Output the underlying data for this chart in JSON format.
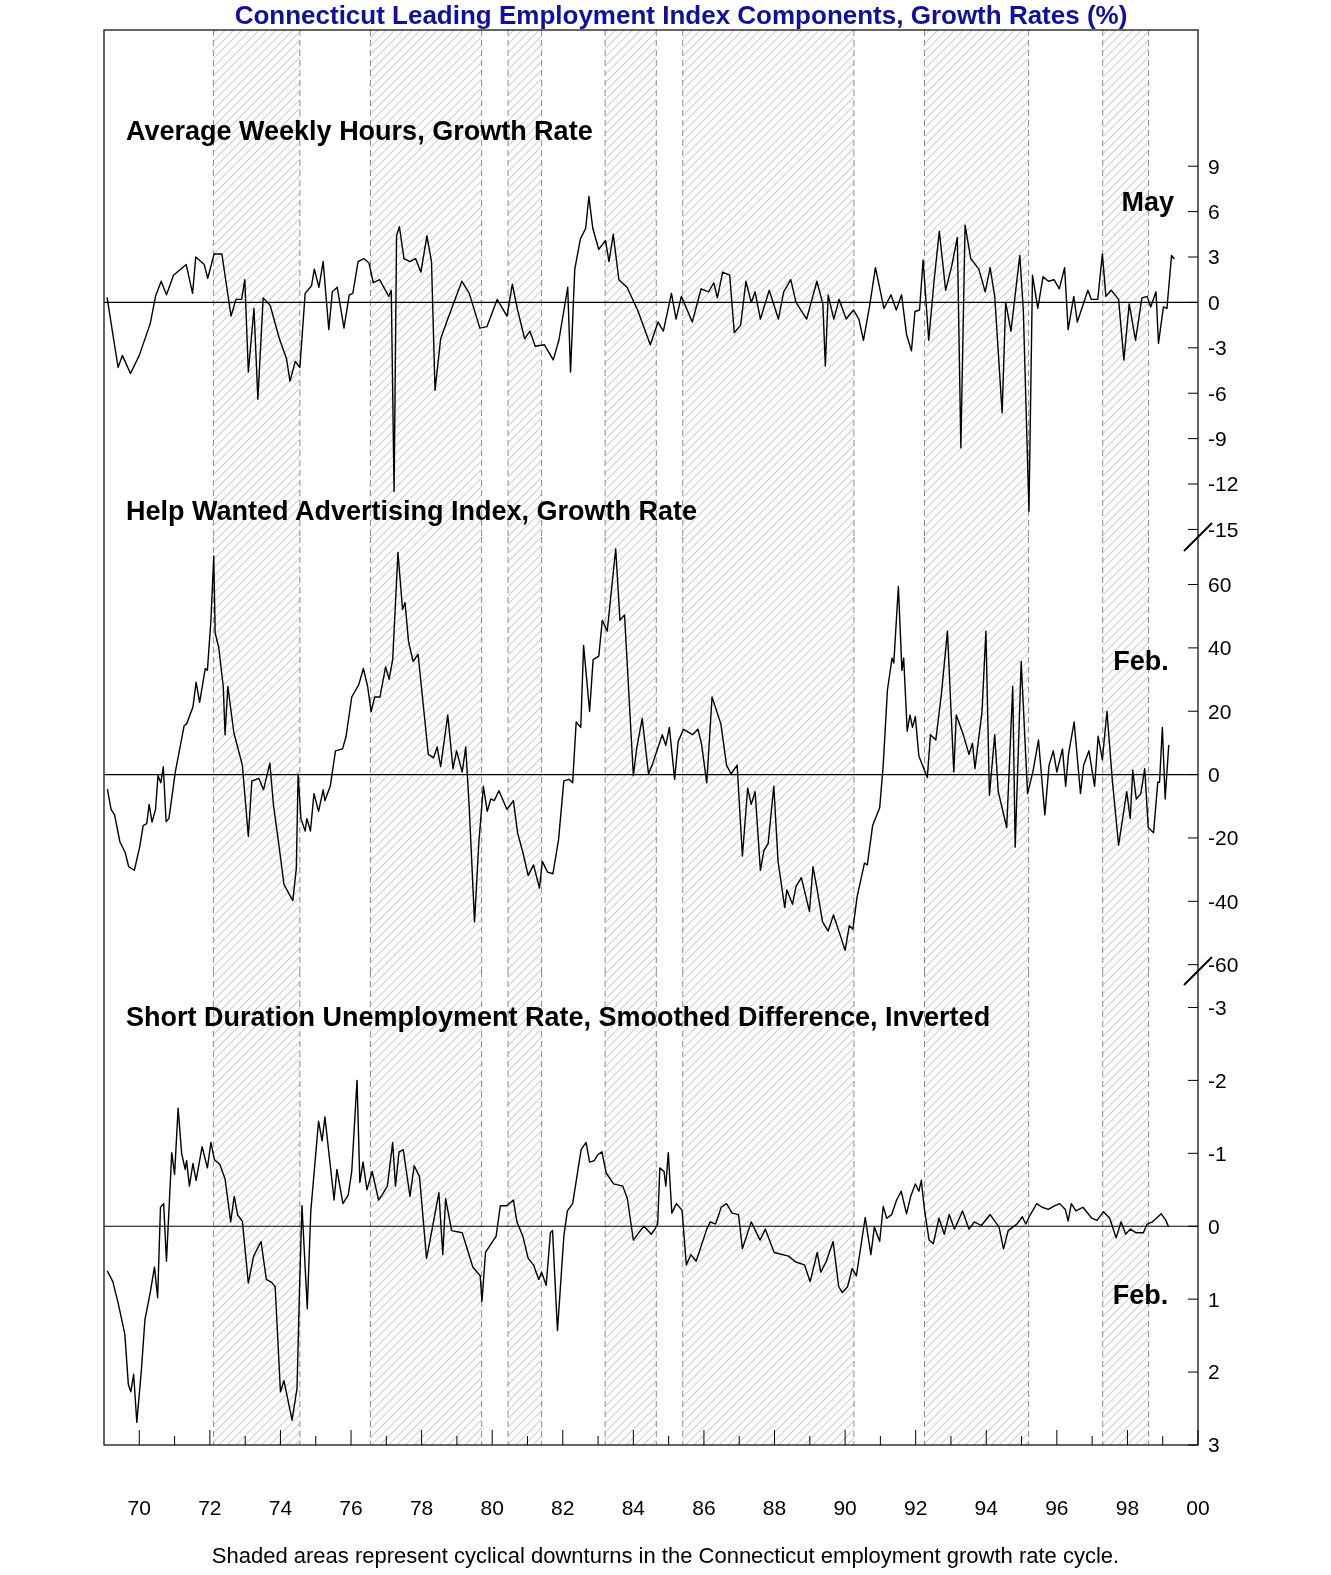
{
  "chart_data": [
    {
      "type": "line",
      "title": "Connecticut Leading Employment Index Components, Growth Rates (%)",
      "subtitle": "Average Weekly Hours, Growth Rate",
      "color": "#000000",
      "x": [
        1969.09,
        1969.25,
        1969.4,
        1969.52,
        1969.75,
        1970.0,
        1970.31,
        1970.46,
        1970.62,
        1970.77,
        1970.97,
        1971.33,
        1971.51,
        1971.6,
        1971.84,
        1971.94,
        1972.12,
        1972.34,
        1972.6,
        1972.74,
        1972.9,
        1972.99,
        1973.09,
        1973.25,
        1973.36,
        1973.51,
        1973.71,
        1973.97,
        1974.17,
        1974.27,
        1974.42,
        1974.55,
        1974.7,
        1974.88,
        1974.96,
        1975.09,
        1975.21,
        1975.37,
        1975.47,
        1975.61,
        1975.8,
        1975.95,
        1976.05,
        1976.2,
        1976.36,
        1976.51,
        1976.63,
        1976.81,
        1977.07,
        1977.14,
        1977.22,
        1977.29,
        1977.37,
        1977.5,
        1977.67,
        1977.83,
        1977.98,
        1978.15,
        1978.28,
        1978.38,
        1978.54,
        1978.74,
        1979.14,
        1979.35,
        1979.65,
        1979.85,
        1980.14,
        1980.42,
        1980.57,
        1980.72,
        1980.92,
        1981.07,
        1981.22,
        1981.48,
        1981.73,
        1981.89,
        1982.14,
        1982.22,
        1982.34,
        1982.5,
        1982.65,
        1982.74,
        1982.85,
        1983.02,
        1983.21,
        1983.31,
        1983.43,
        1983.59,
        1983.82,
        1984.12,
        1984.48,
        1984.7,
        1984.85,
        1985.08,
        1985.21,
        1985.36,
        1985.67,
        1985.92,
        1986.13,
        1986.28,
        1986.38,
        1986.53,
        1986.73,
        1986.86,
        1987.04,
        1987.19,
        1987.34,
        1987.45,
        1987.6,
        1987.85,
        1988.11,
        1988.26,
        1988.46,
        1988.61,
        1988.91,
        1989.2,
        1989.37,
        1989.44,
        1989.52,
        1989.68,
        1989.83,
        1990.03,
        1990.24,
        1990.39,
        1990.52,
        1990.69,
        1990.86,
        1991.1,
        1991.3,
        1991.45,
        1991.6,
        1991.74,
        1991.88,
        1991.98,
        1992.11,
        1992.21,
        1992.37,
        1992.52,
        1992.67,
        1992.85,
        1993.03,
        1993.18,
        1993.28,
        1993.4,
        1993.56,
        1993.79,
        1993.97,
        1994.11,
        1994.24,
        1994.45,
        1994.55,
        1994.7,
        1994.95,
        1995.05,
        1995.21,
        1995.31,
        1995.46,
        1995.61,
        1995.76,
        1995.92,
        1996.07,
        1996.22,
        1996.32,
        1996.48,
        1996.58,
        1996.88,
        1996.98,
        1997.16,
        1997.29,
        1997.39,
        1997.54,
        1997.75,
        1997.9,
        1998.05,
        1998.23,
        1998.41,
        1998.56,
        1998.66,
        1998.81,
        1998.88,
        1999.02,
        1999.12,
        1999.25,
        1999.32
      ],
      "values": [
        0.3,
        -2.1,
        -4.3,
        -3.5,
        -4.7,
        -3.5,
        -1.4,
        0.4,
        1.4,
        0.5,
        1.8,
        2.5,
        0.6,
        3.0,
        2.5,
        1.6,
        3.2,
        3.2,
        -0.9,
        0.2,
        0.2,
        1.5,
        -4.6,
        -0.4,
        -6.4,
        0.3,
        -0.2,
        -2.4,
        -3.7,
        -5.2,
        -3.9,
        -4.3,
        0.6,
        1.1,
        2.2,
        1.0,
        2.7,
        -1.8,
        0.7,
        1.0,
        -1.7,
        0.5,
        0.6,
        2.7,
        2.9,
        2.6,
        1.3,
        1.5,
        0.4,
        0.8,
        -12.5,
        4.4,
        5.0,
        2.9,
        2.7,
        2.9,
        2.0,
        4.4,
        2.7,
        -5.8,
        -2.4,
        -1.1,
        1.4,
        0.6,
        -1.7,
        -1.6,
        0.2,
        -0.9,
        1.2,
        -0.5,
        -2.4,
        -1.9,
        -2.9,
        -2.8,
        -3.8,
        -2.5,
        1.0,
        -4.6,
        2.2,
        4.2,
        4.9,
        7.0,
        4.9,
        3.5,
        4.1,
        2.7,
        4.5,
        1.5,
        1.0,
        -0.5,
        -2.8,
        -1.3,
        -1.9,
        0.6,
        -1.1,
        0.4,
        -1.3,
        0.9,
        0.7,
        1.3,
        0.3,
        2.0,
        1.8,
        -2.0,
        -1.5,
        1.4,
        0.0,
        0.7,
        -1.1,
        0.8,
        -1.1,
        0.7,
        1.5,
        0.0,
        -1.1,
        1.4,
        -0.1,
        -4.2,
        0.5,
        -1.1,
        0.2,
        -1.1,
        -0.5,
        -1.1,
        -2.5,
        -0.3,
        2.3,
        -0.4,
        0.5,
        -0.5,
        0.5,
        -2.1,
        -3.2,
        -0.6,
        -0.5,
        2.8,
        -2.5,
        1.4,
        4.7,
        0.8,
        2.5,
        4.3,
        -9.6,
        5.1,
        2.9,
        2.2,
        0.7,
        2.3,
        0.4,
        -7.3,
        0.0,
        -1.9,
        3.1,
        -0.5,
        -13.8,
        1.8,
        -0.4,
        1.7,
        1.4,
        1.5,
        0.9,
        2.3,
        -1.8,
        0.4,
        -1.3,
        0.8,
        0.2,
        0.2,
        3.2,
        0.4,
        0.8,
        0.2,
        -3.8,
        -0.1,
        -2.5,
        0.3,
        0.4,
        -0.3,
        0.7,
        -2.7,
        -0.3,
        -0.4,
        3.1,
        2.9
      ],
      "xlim": [
        1969,
        2000
      ],
      "ylim": [
        -15.5,
        18
      ],
      "yticks": [
        9,
        6,
        3,
        0,
        -3,
        -6,
        -9,
        -12,
        -15
      ],
      "tick_labels": "y",
      "ref_lines": [
        {
          "axis": "y",
          "value": 0
        }
      ],
      "bands": [
        {
          "axis": "x",
          "from": 1972.1,
          "to": 1974.55,
          "color": "#8c8c8c"
        },
        {
          "axis": "x",
          "from": 1976.55,
          "to": 1979.7,
          "color": "#8c8c8c"
        },
        {
          "axis": "x",
          "from": 1980.45,
          "to": 1981.4,
          "color": "#8c8c8c"
        },
        {
          "axis": "x",
          "from": 1983.2,
          "to": 1984.65,
          "color": "#8c8c8c"
        },
        {
          "axis": "x",
          "from": 1985.4,
          "to": 1990.25,
          "color": "#8c8c8c"
        },
        {
          "axis": "x",
          "from": 1992.25,
          "to": 1995.2,
          "color": "#8c8c8c"
        },
        {
          "axis": "x",
          "from": 1997.3,
          "to": 1998.6,
          "color": "#8c8c8c"
        }
      ],
      "annotations": [
        {
          "text": "May",
          "x": 1999.32,
          "y": 2.9
        }
      ]
    },
    {
      "type": "line",
      "title": "Help Wanted Advertising Index, Growth Rate",
      "color": "#000000",
      "x": [
        1969.1,
        1969.2,
        1969.3,
        1969.45,
        1969.6,
        1969.7,
        1969.86,
        1970.01,
        1970.11,
        1970.21,
        1970.28,
        1970.36,
        1970.46,
        1970.53,
        1970.61,
        1970.68,
        1970.76,
        1970.84,
        1971.02,
        1971.27,
        1971.34,
        1971.52,
        1971.61,
        1971.71,
        1971.87,
        1971.93,
        1972.03,
        1972.11,
        1972.15,
        1972.25,
        1972.38,
        1972.43,
        1972.51,
        1972.68,
        1972.92,
        1973.09,
        1973.19,
        1973.39,
        1973.52,
        1973.7,
        1973.8,
        1973.95,
        1974.1,
        1974.35,
        1974.45,
        1974.5,
        1974.58,
        1974.7,
        1974.75,
        1974.85,
        1974.95,
        1975.08,
        1975.21,
        1975.26,
        1975.41,
        1975.56,
        1975.76,
        1975.86,
        1976.02,
        1976.22,
        1976.35,
        1976.47,
        1976.57,
        1976.67,
        1976.82,
        1976.98,
        1977.08,
        1977.18,
        1977.33,
        1977.46,
        1977.53,
        1977.63,
        1977.76,
        1977.9,
        1978.19,
        1978.34,
        1978.44,
        1978.54,
        1978.74,
        1978.89,
        1978.99,
        1979.15,
        1979.25,
        1979.35,
        1979.5,
        1979.62,
        1979.75,
        1979.86,
        1979.96,
        1980.06,
        1980.19,
        1980.42,
        1980.6,
        1980.72,
        1980.87,
        1981.02,
        1981.17,
        1981.34,
        1981.42,
        1981.57,
        1981.72,
        1981.88,
        1982.03,
        1982.18,
        1982.28,
        1982.38,
        1982.51,
        1982.59,
        1982.76,
        1982.86,
        1983.02,
        1983.12,
        1983.26,
        1983.5,
        1983.62,
        1983.75,
        1984.0,
        1984.1,
        1984.25,
        1984.43,
        1984.55,
        1984.82,
        1984.92,
        1985.02,
        1985.17,
        1985.27,
        1985.42,
        1985.68,
        1985.83,
        1985.93,
        1986.08,
        1986.23,
        1986.48,
        1986.64,
        1986.77,
        1986.94,
        1987.09,
        1987.24,
        1987.34,
        1987.45,
        1987.6,
        1987.7,
        1987.82,
        1987.98,
        1988.1,
        1988.29,
        1988.35,
        1988.51,
        1988.61,
        1988.76,
        1988.99,
        1989.09,
        1989.21,
        1989.36,
        1989.52,
        1989.67,
        1989.87,
        1990.0,
        1990.12,
        1990.22,
        1990.34,
        1990.55,
        1990.63,
        1990.78,
        1990.98,
        1991.08,
        1991.2,
        1991.33,
        1991.38,
        1991.51,
        1991.61,
        1991.66,
        1991.76,
        1991.84,
        1991.91,
        1991.99,
        1992.09,
        1992.19,
        1992.33,
        1992.42,
        1992.57,
        1992.73,
        1992.9,
        1993.08,
        1993.15,
        1993.35,
        1993.51,
        1993.61,
        1993.68,
        1993.88,
        1993.99,
        1994.09,
        1994.24,
        1994.34,
        1994.58,
        1994.75,
        1994.82,
        1994.99,
        1995.17,
        1995.32,
        1995.48,
        1995.66,
        1995.78,
        1995.9,
        1996.0,
        1996.16,
        1996.25,
        1996.33,
        1996.49,
        1996.67,
        1996.76,
        1996.91,
        1997.07,
        1997.17,
        1997.29,
        1997.42,
        1997.57,
        1997.75,
        1997.98,
        1998.08,
        1998.15,
        1998.25,
        1998.38,
        1998.49,
        1998.59,
        1998.74,
        1998.86,
        1998.91,
        1998.99,
        1999.07,
        1999.17
      ],
      "values": [
        -4.8,
        -11.0,
        -12.7,
        -21.2,
        -24.6,
        -29.1,
        -30.2,
        -22.9,
        -16.1,
        -15.5,
        -9.4,
        -15.0,
        -11.0,
        -0.3,
        -2.6,
        2.5,
        -14.8,
        -13.9,
        0.8,
        15.4,
        16.0,
        21.3,
        29.2,
        22.8,
        33.5,
        32.9,
        48.7,
        69.0,
        44.7,
        40.2,
        27.8,
        12.6,
        27.8,
        13.2,
        3.0,
        -19.5,
        -2.0,
        -1.2,
        -4.8,
        3.6,
        -9.4,
        -21.7,
        -34.7,
        -39.8,
        -29.6,
        0.2,
        -13.9,
        -17.8,
        -13.9,
        -17.8,
        -6.0,
        -11.6,
        -4.8,
        -8.2,
        -3.7,
        7.5,
        8.1,
        12.1,
        24.5,
        28.4,
        33.5,
        27.8,
        19.9,
        24.5,
        24.5,
        34.0,
        30.1,
        36.3,
        70.1,
        52.1,
        54.3,
        41.9,
        35.7,
        38.0,
        6.4,
        5.3,
        8.7,
        2.5,
        18.8,
        1.9,
        7.5,
        0.8,
        8.7,
        -10.5,
        -46.5,
        -21.7,
        -3.7,
        -11.6,
        -7.7,
        -8.2,
        -5.1,
        -11.0,
        -8.2,
        -18.4,
        -24.6,
        -31.9,
        -28.5,
        -35.8,
        -27.4,
        -30.8,
        -31.3,
        -20.6,
        -2.0,
        -1.5,
        -2.6,
        16.6,
        14.9,
        40.8,
        19.9,
        36.3,
        37.4,
        48.7,
        45.3,
        71.2,
        48.7,
        50.4,
        -0.3,
        8.7,
        17.7,
        0.2,
        3.6,
        12.6,
        9.2,
        14.9,
        -1.5,
        10.4,
        14.3,
        12.6,
        14.3,
        9.8,
        -2.6,
        24.5,
        16.0,
        3.0,
        0.2,
        3.0,
        -25.7,
        -4.3,
        -9.4,
        -5.4,
        -30.2,
        -24.0,
        -21.7,
        -3.7,
        -27.4,
        -42.0,
        -36.4,
        -40.9,
        -35.3,
        -32.5,
        -43.2,
        -29.1,
        -36.4,
        -46.5,
        -49.4,
        -44.3,
        -51.0,
        -55.5,
        -47.7,
        -48.8,
        -38.6,
        -27.9,
        -28.5,
        -16.1,
        -10.5,
        3.0,
        26.7,
        36.8,
        35.2,
        59.4,
        32.9,
        36.8,
        13.7,
        18.8,
        14.9,
        18.3,
        5.9,
        3.0,
        -0.9,
        12.6,
        10.9,
        25.6,
        45.3,
        0.8,
        18.8,
        12.6,
        6.4,
        9.8,
        1.9,
        19.9,
        45.3,
        -6.5,
        12.6,
        -5.4,
        -16.7,
        27.8,
        -22.9,
        35.7,
        -6.0,
        0.8,
        10.9,
        -12.7,
        3.0,
        7.5,
        0.8,
        8.1,
        -3.7,
        6.4,
        16.6,
        -6.0,
        3.0,
        7.5,
        -3.7,
        12.1,
        4.7,
        19.9,
        -1.5,
        -22.3,
        -5.4,
        -13.9,
        1.4,
        -7.7,
        -6.0,
        1.9,
        -16.7,
        -18.4,
        -2.4,
        -2.4,
        14.9,
        -7.7,
        9.2
      ],
      "xlim": [
        1969,
        2000
      ],
      "ylim": [
        -62,
        75
      ],
      "yticks": [
        60,
        40,
        20,
        0,
        -20,
        -40,
        -60
      ],
      "tick_labels": "y",
      "ref_lines": [
        {
          "axis": "y",
          "value": 0
        }
      ],
      "bands": [
        {
          "axis": "x",
          "from": 1972.1,
          "to": 1974.55,
          "color": "#8c8c8c"
        },
        {
          "axis": "x",
          "from": 1976.55,
          "to": 1979.7,
          "color": "#8c8c8c"
        },
        {
          "axis": "x",
          "from": 1980.45,
          "to": 1981.4,
          "color": "#8c8c8c"
        },
        {
          "axis": "x",
          "from": 1983.2,
          "to": 1984.65,
          "color": "#8c8c8c"
        },
        {
          "axis": "x",
          "from": 1985.4,
          "to": 1990.25,
          "color": "#8c8c8c"
        },
        {
          "axis": "x",
          "from": 1992.25,
          "to": 1995.2,
          "color": "#8c8c8c"
        },
        {
          "axis": "x",
          "from": 1997.3,
          "to": 1998.6,
          "color": "#8c8c8c"
        }
      ],
      "annotations": [
        {
          "text": "Feb.",
          "x": 1999.17,
          "y": 9.2
        }
      ]
    },
    {
      "type": "line",
      "title": "Short Duration Unemployment Rate, Smoothed Difference, Inverted",
      "color": "#000000",
      "x": [
        1969.1,
        1969.25,
        1969.4,
        1969.59,
        1969.69,
        1969.76,
        1969.84,
        1969.93,
        1970.06,
        1970.16,
        1970.31,
        1970.43,
        1970.52,
        1970.6,
        1970.69,
        1970.77,
        1970.92,
        1971.0,
        1971.1,
        1971.2,
        1971.3,
        1971.34,
        1971.42,
        1971.52,
        1971.61,
        1971.78,
        1971.93,
        1972.03,
        1972.13,
        1972.28,
        1972.43,
        1972.59,
        1972.69,
        1972.79,
        1972.92,
        1973.09,
        1973.24,
        1973.45,
        1973.6,
        1973.75,
        1973.85,
        1974.0,
        1974.1,
        1974.33,
        1974.47,
        1974.54,
        1974.61,
        1974.76,
        1974.86,
        1975.08,
        1975.18,
        1975.26,
        1975.52,
        1975.6,
        1975.77,
        1975.92,
        1976.02,
        1976.17,
        1976.25,
        1976.34,
        1976.45,
        1976.6,
        1976.78,
        1976.88,
        1977.03,
        1977.18,
        1977.26,
        1977.36,
        1977.48,
        1977.67,
        1977.79,
        1977.94,
        1978.14,
        1978.24,
        1978.49,
        1978.6,
        1978.68,
        1978.85,
        1979.15,
        1979.45,
        1979.66,
        1979.71,
        1979.81,
        1980.01,
        1980.11,
        1980.23,
        1980.41,
        1980.6,
        1980.7,
        1980.87,
        1981.02,
        1981.17,
        1981.32,
        1981.4,
        1981.53,
        1981.65,
        1981.71,
        1981.85,
        1982.03,
        1982.13,
        1982.28,
        1982.52,
        1982.66,
        1982.76,
        1982.89,
        1982.99,
        1983.11,
        1983.23,
        1983.44,
        1983.7,
        1983.83,
        1984.0,
        1984.15,
        1984.3,
        1984.51,
        1984.61,
        1984.69,
        1984.75,
        1984.87,
        1984.92,
        1984.99,
        1985.09,
        1985.22,
        1985.38,
        1985.5,
        1985.63,
        1985.78,
        1986.08,
        1986.18,
        1986.33,
        1986.49,
        1986.64,
        1986.8,
        1986.98,
        1987.09,
        1987.34,
        1987.59,
        1987.74,
        1987.99,
        1988.4,
        1988.6,
        1988.85,
        1989.01,
        1989.21,
        1989.31,
        1989.46,
        1989.66,
        1989.82,
        1989.92,
        1990.07,
        1990.2,
        1990.32,
        1990.57,
        1990.73,
        1990.83,
        1990.98,
        1991.08,
        1991.18,
        1991.32,
        1991.46,
        1991.59,
        1991.74,
        1991.86,
        1991.99,
        1992.09,
        1992.16,
        1992.24,
        1992.38,
        1992.5,
        1992.66,
        1992.81,
        1992.95,
        1993.1,
        1993.33,
        1993.51,
        1993.66,
        1993.86,
        1994.11,
        1994.36,
        1994.49,
        1994.62,
        1994.87,
        1995.02,
        1995.12,
        1995.25,
        1995.43,
        1995.58,
        1995.76,
        1995.93,
        1996.08,
        1996.24,
        1996.32,
        1996.41,
        1996.54,
        1996.74,
        1996.99,
        1997.14,
        1997.32,
        1997.5,
        1997.68,
        1997.82,
        1997.95,
        1998.08,
        1998.25,
        1998.45,
        1998.56,
        1998.71,
        1998.96,
        1999.09,
        1999.16
      ],
      "values": [
        0.62,
        0.76,
        1.05,
        1.48,
        2.17,
        2.27,
        2.03,
        2.69,
        1.97,
        1.28,
        0.91,
        0.56,
        0.98,
        -0.26,
        -0.31,
        0.48,
        -1.01,
        -0.71,
        -1.62,
        -1.0,
        -0.78,
        -0.9,
        -0.55,
        -0.86,
        -0.63,
        -1.09,
        -0.8,
        -1.15,
        -0.91,
        -0.85,
        -0.65,
        -0.06,
        -0.41,
        -0.15,
        -0.07,
        0.78,
        0.41,
        0.21,
        0.73,
        0.77,
        0.83,
        2.27,
        2.12,
        2.66,
        2.22,
        0.86,
        -0.28,
        1.13,
        -0.21,
        -1.44,
        -1.17,
        -1.5,
        -0.36,
        -0.78,
        -0.31,
        -0.43,
        -0.75,
        -2.0,
        -0.6,
        -0.88,
        -0.5,
        -0.75,
        -0.36,
        -0.43,
        -0.55,
        -1.15,
        -0.55,
        -1.02,
        -1.05,
        -0.41,
        -0.83,
        -0.68,
        0.44,
        0.19,
        -0.46,
        0.39,
        -0.38,
        0.06,
        0.09,
        0.56,
        0.68,
        1.03,
        0.36,
        0.21,
        0.14,
        -0.28,
        -0.28,
        -0.36,
        -0.06,
        0.14,
        0.44,
        0.53,
        0.73,
        0.63,
        0.81,
        0.09,
        0.06,
        1.43,
        0.14,
        -0.21,
        -0.31,
        -1.05,
        -1.15,
        -0.88,
        -0.9,
        -0.98,
        -1.02,
        -0.73,
        -0.58,
        -0.55,
        -0.38,
        0.19,
        0.09,
        0.0,
        0.11,
        0.04,
        -0.03,
        -0.8,
        -0.75,
        -0.55,
        -1.01,
        -0.18,
        -0.31,
        -0.22,
        0.53,
        0.39,
        0.48,
        0.04,
        -0.06,
        -0.03,
        -0.26,
        -0.31,
        -0.18,
        -0.16,
        0.31,
        -0.06,
        0.19,
        0.04,
        0.36,
        0.41,
        0.49,
        0.53,
        0.76,
        0.36,
        0.63,
        0.49,
        0.21,
        0.83,
        0.91,
        0.83,
        0.58,
        0.68,
        -0.12,
        0.39,
        0.01,
        0.21,
        -0.27,
        -0.11,
        -0.16,
        -0.36,
        -0.48,
        -0.17,
        -0.41,
        -0.58,
        -0.48,
        -0.63,
        -0.26,
        0.19,
        0.24,
        -0.11,
        0.11,
        -0.16,
        0.04,
        -0.21,
        0.04,
        -0.06,
        -0.01,
        -0.16,
        0.01,
        0.31,
        0.06,
        -0.03,
        -0.13,
        -0.03,
        -0.16,
        -0.31,
        -0.26,
        -0.23,
        -0.28,
        -0.31,
        -0.23,
        -0.07,
        -0.31,
        -0.21,
        -0.26,
        -0.11,
        -0.08,
        -0.2,
        -0.11,
        0.16,
        -0.06,
        0.11,
        0.04,
        0.09,
        0.09,
        -0.03,
        -0.06,
        -0.17,
        -0.08,
        0.0
      ],
      "xlim": [
        1969,
        2000
      ],
      "ylim": [
        3,
        -3.5
      ],
      "yticks": [
        -3,
        -2,
        -1,
        0,
        1,
        2,
        3
      ],
      "xticks": [
        {
          "value": 1970,
          "label": "70"
        },
        {
          "value": 1971,
          "label": null
        },
        {
          "value": 1972,
          "label": "72"
        },
        {
          "value": 1973,
          "label": null
        },
        {
          "value": 1974,
          "label": "74"
        },
        {
          "value": 1975,
          "label": null
        },
        {
          "value": 1976,
          "label": "76"
        },
        {
          "value": 1977,
          "label": null
        },
        {
          "value": 1978,
          "label": "78"
        },
        {
          "value": 1979,
          "label": null
        },
        {
          "value": 1980,
          "label": "80"
        },
        {
          "value": 1981,
          "label": null
        },
        {
          "value": 1982,
          "label": "82"
        },
        {
          "value": 1983,
          "label": null
        },
        {
          "value": 1984,
          "label": "84"
        },
        {
          "value": 1985,
          "label": null
        },
        {
          "value": 1986,
          "label": "86"
        },
        {
          "value": 1987,
          "label": null
        },
        {
          "value": 1988,
          "label": "88"
        },
        {
          "value": 1989,
          "label": null
        },
        {
          "value": 1990,
          "label": "90"
        },
        {
          "value": 1991,
          "label": null
        },
        {
          "value": 1992,
          "label": "92"
        },
        {
          "value": 1993,
          "label": null
        },
        {
          "value": 1994,
          "label": "94"
        },
        {
          "value": 1995,
          "label": null
        },
        {
          "value": 1996,
          "label": "96"
        },
        {
          "value": 1997,
          "label": null
        },
        {
          "value": 1998,
          "label": "98"
        },
        {
          "value": 1999,
          "label": null
        },
        {
          "value": 2000,
          "label": "00"
        }
      ],
      "ref_lines": [
        {
          "axis": "y",
          "value": 0
        }
      ],
      "bands": [
        {
          "axis": "x",
          "from": 1972.1,
          "to": 1974.55,
          "color": "#8c8c8c"
        },
        {
          "axis": "x",
          "from": 1976.55,
          "to": 1979.7,
          "color": "#8c8c8c"
        },
        {
          "axis": "x",
          "from": 1980.45,
          "to": 1981.4,
          "color": "#8c8c8c"
        },
        {
          "axis": "x",
          "from": 1983.2,
          "to": 1984.65,
          "color": "#8c8c8c"
        },
        {
          "axis": "x",
          "from": 1985.4,
          "to": 1990.25,
          "color": "#8c8c8c"
        },
        {
          "axis": "x",
          "from": 1992.25,
          "to": 1995.2,
          "color": "#8c8c8c"
        },
        {
          "axis": "x",
          "from": 1997.3,
          "to": 1998.6,
          "color": "#8c8c8c"
        }
      ],
      "annotations": [
        {
          "text": "Feb.",
          "x": 1999.16,
          "y": 0.0
        },
        "Shaded areas represent cyclical downturns in the Connecticut employment growth rate cycle."
      ]
    }
  ]
}
